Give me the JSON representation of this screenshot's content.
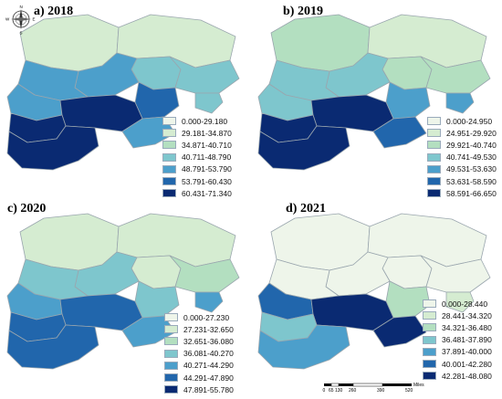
{
  "panels": [
    {
      "title": "a) 2018",
      "legend": [
        "0.000-29.180",
        "29.181-34.870",
        "34.871-40.710",
        "40.711-48.790",
        "48.791-53.790",
        "53.791-60.430",
        "60.431-71.340"
      ],
      "region_classes": [
        1,
        1,
        3,
        3,
        3,
        4,
        4,
        5,
        4,
        6,
        6,
        4,
        6
      ]
    },
    {
      "title": "b) 2019",
      "legend": [
        "0.000-24.950",
        "24.951-29.920",
        "29.921-40.740",
        "40.741-49.530",
        "49.531-53.630",
        "53.631-58.590",
        "58.591-66.650"
      ],
      "region_classes": [
        2,
        1,
        2,
        2,
        4,
        3,
        3,
        4,
        3,
        6,
        6,
        5,
        6
      ]
    },
    {
      "title": "c) 2020",
      "legend": [
        "0.000-27.230",
        "27.231-32.650",
        "32.651-36.080",
        "36.081-40.270",
        "40.271-44.290",
        "44.291-47.890",
        "47.891-55.780"
      ],
      "region_classes": [
        1,
        1,
        1,
        2,
        4,
        3,
        3,
        3,
        4,
        5,
        5,
        4,
        5
      ]
    },
    {
      "title": "d) 2021",
      "legend": [
        "0.000-28.440",
        "28.441-34.320",
        "34.321-36.480",
        "36.481-37.890",
        "37.891-40.000",
        "40.001-42.280",
        "42.281-48.080"
      ],
      "region_classes": [
        0,
        0,
        0,
        0,
        1,
        0,
        0,
        2,
        5,
        6,
        3,
        6,
        4
      ]
    }
  ],
  "colors": [
    "#eef5ea",
    "#d5ecd1",
    "#b3dfc0",
    "#7ec6cd",
    "#4c9fcb",
    "#2166ac",
    "#0a2a72"
  ],
  "compass": {
    "n": "N",
    "s": "S",
    "e": "E",
    "w": "W"
  },
  "scale": {
    "ticks": [
      "0",
      "65",
      "130",
      "260",
      "390",
      "520"
    ],
    "unit": "Miles"
  }
}
